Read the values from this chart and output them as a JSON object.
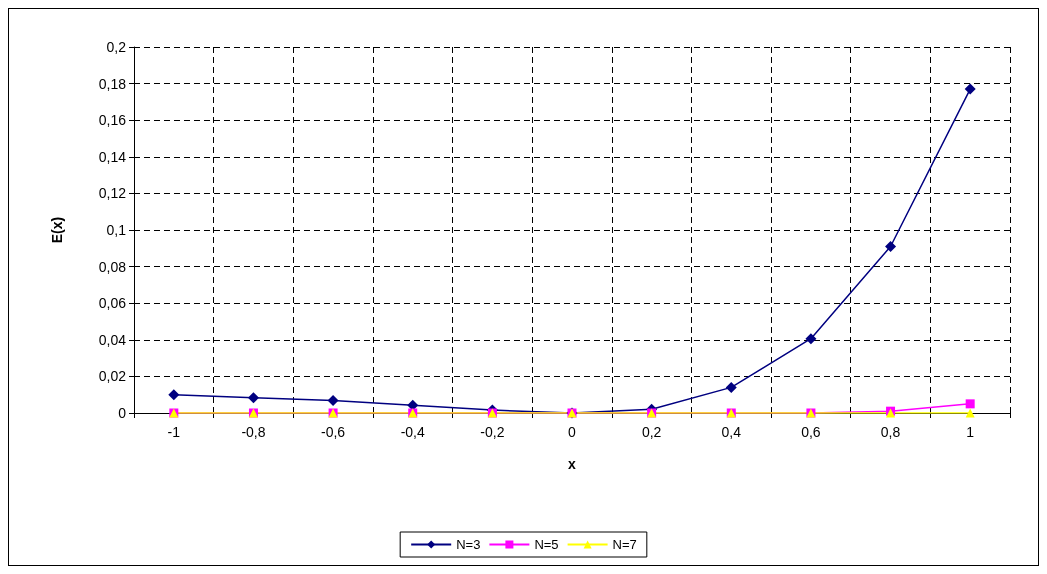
{
  "chart_data": {
    "type": "line",
    "xlabel": "x",
    "ylabel": "E(x)",
    "categories": [
      "-1",
      "-0,8",
      "-0,6",
      "-0,4",
      "-0,2",
      "0",
      "0,2",
      "0,4",
      "0,6",
      "0,8",
      "1"
    ],
    "series": [
      {
        "name": "N=3",
        "color": "#000080",
        "marker": "diamond",
        "values": [
          0.01,
          0.0083,
          0.0068,
          0.0042,
          0.0016,
          0,
          0.002,
          0.014,
          0.0406,
          0.091,
          0.177
        ]
      },
      {
        "name": "N=5",
        "color": "#ff00ff",
        "marker": "square",
        "values": [
          0,
          0,
          0,
          0,
          0,
          0,
          0,
          0,
          0,
          0.001,
          0.005
        ]
      },
      {
        "name": "N=7",
        "color": "#ffff00",
        "marker": "triangle",
        "values": [
          0,
          0,
          0,
          0,
          0,
          0,
          0,
          0,
          0,
          0,
          0
        ]
      }
    ],
    "ylim": [
      0,
      0.2
    ],
    "yticks": [
      {
        "value": 0,
        "label": "0"
      },
      {
        "value": 0.02,
        "label": "0,02"
      },
      {
        "value": 0.04,
        "label": "0,04"
      },
      {
        "value": 0.06,
        "label": "0,06"
      },
      {
        "value": 0.08,
        "label": "0,08"
      },
      {
        "value": 0.1,
        "label": "0,1"
      },
      {
        "value": 0.12,
        "label": "0,12"
      },
      {
        "value": 0.14,
        "label": "0,14"
      },
      {
        "value": 0.16,
        "label": "0,16"
      },
      {
        "value": 0.18,
        "label": "0,18"
      },
      {
        "value": 0.2,
        "label": "0,2"
      }
    ],
    "grid": true,
    "legend": "bottom",
    "line_style": "solid"
  }
}
